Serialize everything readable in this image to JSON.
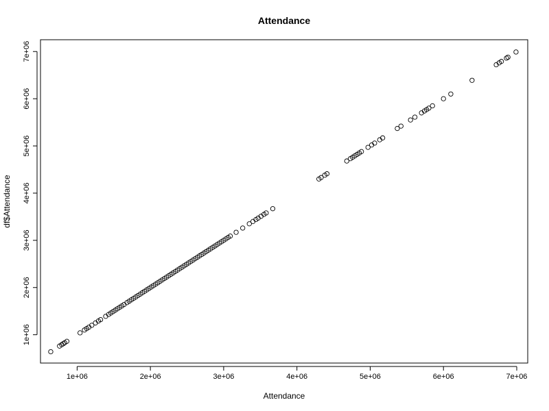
{
  "chart_data": {
    "type": "scatter",
    "title": "Attendance",
    "xlabel": "Attendance",
    "ylabel": "df$Attendance",
    "xlim": [
      500000,
      7150000
    ],
    "ylim": [
      400000,
      7250000
    ],
    "x_ticks": [
      1000000,
      2000000,
      3000000,
      4000000,
      5000000,
      6000000,
      7000000
    ],
    "x_tick_labels": [
      "1e+06",
      "2e+06",
      "3e+06",
      "4e+06",
      "5e+06",
      "6e+06",
      "7e+06"
    ],
    "y_ticks": [
      1000000,
      2000000,
      3000000,
      4000000,
      5000000,
      6000000,
      7000000
    ],
    "y_tick_labels": [
      "1e+06",
      "2e+06",
      "3e+06",
      "4e+06",
      "5e+06",
      "6e+06",
      "7e+06"
    ],
    "grid": false,
    "legend": "none",
    "point_style": "open-circle",
    "series": [
      {
        "x": [
          640000,
          760000,
          790000,
          810000,
          830000,
          860000,
          1040000,
          1100000,
          1130000,
          1160000,
          1200000,
          1250000,
          1290000,
          1320000,
          1390000,
          1430000,
          1460000,
          1490000,
          1520000,
          1550000,
          1580000,
          1610000,
          1640000,
          1680000,
          1710000,
          1740000,
          1770000,
          1800000,
          1830000,
          1860000,
          1890000,
          1920000,
          1950000,
          1980000,
          2010000,
          2040000,
          2070000,
          2100000,
          2130000,
          2160000,
          2190000,
          2220000,
          2250000,
          2280000,
          2310000,
          2340000,
          2370000,
          2400000,
          2430000,
          2460000,
          2490000,
          2520000,
          2550000,
          2580000,
          2610000,
          2640000,
          2670000,
          2700000,
          2730000,
          2760000,
          2790000,
          2820000,
          2850000,
          2880000,
          2910000,
          2940000,
          2970000,
          3000000,
          3030000,
          3060000,
          3090000,
          3170000,
          3260000,
          3350000,
          3400000,
          3440000,
          3470000,
          3510000,
          3550000,
          3580000,
          3670000,
          4300000,
          4330000,
          4380000,
          4410000,
          4680000,
          4730000,
          4760000,
          4790000,
          4820000,
          4850000,
          4880000,
          4970000,
          5020000,
          5060000,
          5130000,
          5170000,
          5370000,
          5420000,
          5550000,
          5610000,
          5700000,
          5740000,
          5770000,
          5800000,
          5850000,
          6000000,
          6100000,
          6390000,
          6720000,
          6760000,
          6790000,
          6860000,
          6880000,
          6990000
        ],
        "y": [
          640000,
          760000,
          790000,
          810000,
          830000,
          860000,
          1040000,
          1100000,
          1130000,
          1160000,
          1200000,
          1250000,
          1290000,
          1320000,
          1390000,
          1430000,
          1460000,
          1490000,
          1520000,
          1550000,
          1580000,
          1610000,
          1640000,
          1680000,
          1710000,
          1740000,
          1770000,
          1800000,
          1830000,
          1860000,
          1890000,
          1920000,
          1950000,
          1980000,
          2010000,
          2040000,
          2070000,
          2100000,
          2130000,
          2160000,
          2190000,
          2220000,
          2250000,
          2280000,
          2310000,
          2340000,
          2370000,
          2400000,
          2430000,
          2460000,
          2490000,
          2520000,
          2550000,
          2580000,
          2610000,
          2640000,
          2670000,
          2700000,
          2730000,
          2760000,
          2790000,
          2820000,
          2850000,
          2880000,
          2910000,
          2940000,
          2970000,
          3000000,
          3030000,
          3060000,
          3090000,
          3170000,
          3260000,
          3350000,
          3400000,
          3440000,
          3470000,
          3510000,
          3550000,
          3580000,
          3670000,
          4300000,
          4330000,
          4380000,
          4410000,
          4680000,
          4730000,
          4760000,
          4790000,
          4820000,
          4850000,
          4880000,
          4970000,
          5020000,
          5060000,
          5130000,
          5170000,
          5370000,
          5420000,
          5550000,
          5610000,
          5700000,
          5740000,
          5770000,
          5800000,
          5850000,
          6000000,
          6100000,
          6390000,
          6720000,
          6760000,
          6790000,
          6860000,
          6880000,
          6990000
        ]
      }
    ]
  }
}
